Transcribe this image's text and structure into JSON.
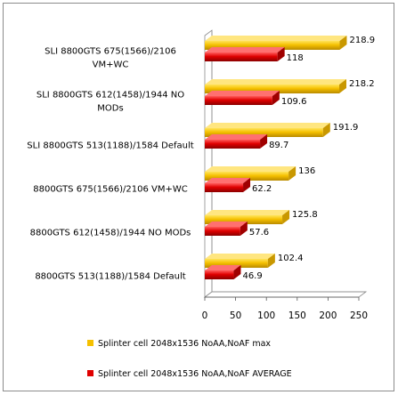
{
  "chart_data": {
    "type": "bar",
    "orientation": "horizontal",
    "style": "3d",
    "categories": [
      "SLI 8800GTS 675(1566)/2106 VM+WC",
      "SLI 8800GTS 612(1458)/1944 NO MODs",
      "SLI 8800GTS 513(1188)/1584 Default",
      "8800GTS 675(1566)/2106 VM+WC",
      "8800GTS 612(1458)/1944 NO MODs",
      "8800GTS 513(1188)/1584 Default"
    ],
    "category_lines": [
      [
        "SLI 8800GTS 675(1566)/2106",
        "VM+WC"
      ],
      [
        "SLI 8800GTS 612(1458)/1944 NO",
        "MODs"
      ],
      [
        "SLI 8800GTS 513(1188)/1584 Default"
      ],
      [
        "8800GTS 675(1566)/2106 VM+WC"
      ],
      [
        "8800GTS 612(1458)/1944 NO MODs"
      ],
      [
        "8800GTS 513(1188)/1584 Default"
      ]
    ],
    "series": [
      {
        "name": "Splinter cell 2048x1536 NoAA,NoAF max",
        "values": [
          218.9,
          218.2,
          191.9,
          136,
          125.8,
          102.4
        ],
        "labels": [
          "218.9",
          "218.2",
          "191.9",
          "136",
          "125.8",
          "102.4"
        ],
        "color": "#f5c000"
      },
      {
        "name": "Splinter cell 2048x1536 NoAA,NoAF AVERAGE",
        "values": [
          118,
          109.6,
          89.7,
          62.2,
          57.6,
          46.9
        ],
        "labels": [
          "118",
          "109.6",
          "89.7",
          "62.2",
          "57.6",
          "46.9"
        ],
        "color": "#e00000"
      }
    ],
    "xlim": [
      0,
      250
    ],
    "xticks": [
      0,
      50,
      100,
      150,
      200,
      250
    ],
    "title": "",
    "xlabel": "",
    "ylabel": "",
    "grid": false,
    "legend": "bottom"
  }
}
